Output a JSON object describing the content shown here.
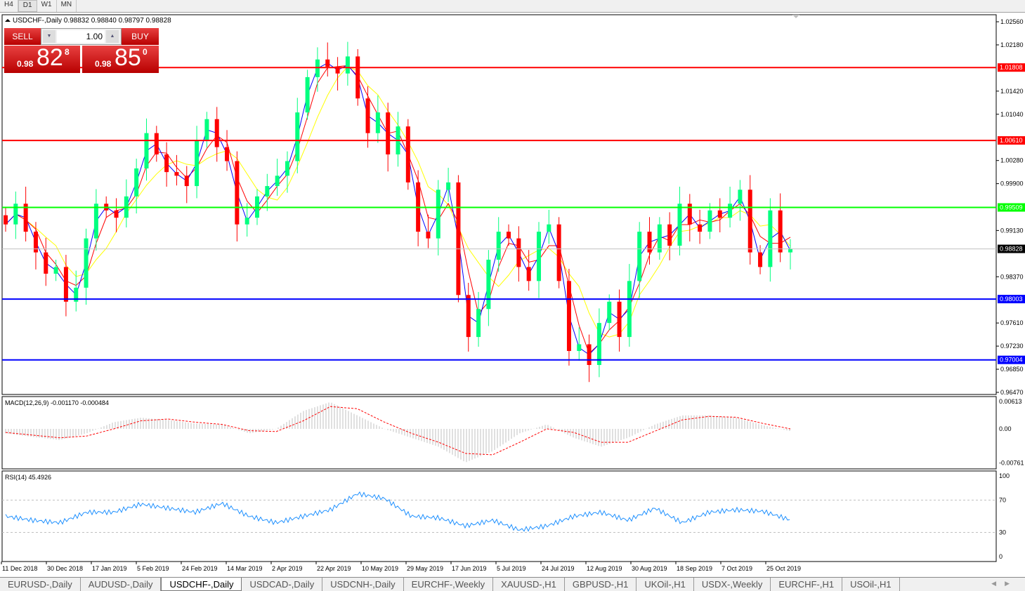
{
  "toolbar": {
    "timeframes": [
      "H4",
      "D1",
      "W1",
      "MN"
    ],
    "active": "D1"
  },
  "chart": {
    "header": "USDCHF-,Daily  0.98832 0.98840 0.98797 0.98828",
    "trade_panel": {
      "sell_label": "SELL",
      "buy_label": "BUY",
      "lot": "1.00",
      "sell_prefix": "0.98",
      "sell_big": "82",
      "sell_sup": "8",
      "buy_prefix": "0.98",
      "buy_big": "85",
      "buy_sup": "0"
    },
    "price_ticks": [
      "1.02560",
      "1.02180",
      "1.01420",
      "1.01040",
      "1.00280",
      "0.99900",
      "0.99130",
      "0.98370",
      "0.97610",
      "0.97230",
      "0.96850",
      "0.96470"
    ],
    "levels": [
      {
        "price": "1.01808",
        "color": "#ff0000"
      },
      {
        "price": "1.00610",
        "color": "#ff0000"
      },
      {
        "price": "0.99509",
        "color": "#00ff00"
      },
      {
        "price": "0.98003",
        "color": "#0000ff"
      },
      {
        "price": "0.97004",
        "color": "#0000ff"
      }
    ],
    "current_price": "0.98828",
    "dates": [
      "11 Dec 2018",
      "30 Dec 2018",
      "17 Jan 2019",
      "5 Feb 2019",
      "24 Feb 2019",
      "14 Mar 2019",
      "2 Apr 2019",
      "22 Apr 2019",
      "10 May 2019",
      "29 May 2019",
      "17 Jun 2019",
      "5 Jul 2019",
      "24 Jul 2019",
      "12 Aug 2019",
      "30 Aug 2019",
      "18 Sep 2019",
      "7 Oct 2019",
      "25 Oct 2019"
    ],
    "colors": {
      "bull": "#00ff7f",
      "bear": "#ff0000",
      "ma_fast": "#0000ff",
      "ma_mid": "#ff0000",
      "ma_slow": "#ffff00"
    }
  },
  "macd": {
    "label": "MACD(12,26,9) -0.001170 -0.000484",
    "ticks": [
      "0.00613",
      "0.00",
      "-0.00761"
    ]
  },
  "rsi": {
    "label": "RSI(14) 45.4926",
    "ticks": [
      "100",
      "70",
      "30",
      "0"
    ]
  },
  "chart_data": {
    "type": "candlestick",
    "symbol": "USDCHF",
    "timeframe": "Daily",
    "ylim": [
      0.9647,
      1.0256
    ],
    "closes": [
      0.9923,
      0.9957,
      0.9911,
      0.9877,
      0.9842,
      0.9853,
      0.9796,
      0.9819,
      0.99,
      0.9957,
      0.9946,
      0.9934,
      0.9969,
      1.0015,
      1.0073,
      1.0038,
      1.0009,
      1.0003,
      0.9986,
      1.0061,
      1.0096,
      1.005,
      1.0027,
      0.9923,
      0.9934,
      0.9969,
      0.9986,
      1.0003,
      1.0027,
      1.0107,
      1.0165,
      1.0194,
      1.0182,
      1.0171,
      1.0199,
      1.013,
      1.0073,
      1.0107,
      1.0038,
      1.0084,
      0.9992,
      0.9911,
      0.99,
      0.998,
      0.9992,
      0.9807,
      0.9738,
      0.9784,
      0.9865,
      0.9911,
      0.99,
      0.9853,
      0.983,
      0.9911,
      0.9923,
      0.983,
      0.9715,
      0.9726,
      0.9692,
      0.9761,
      0.9796,
      0.9738,
      0.983,
      0.9911,
      0.9877,
      0.9923,
      0.9888,
      0.9957,
      0.9923,
      0.9911,
      0.9946,
      0.9934,
      0.9957,
      0.998,
      0.9877,
      0.9853,
      0.9946,
      0.9877,
      0.98828
    ],
    "macd_hist": [
      -0.001,
      -0.0018,
      -0.0025,
      -0.001,
      0.0015,
      0.0025,
      0.002,
      0.0012,
      0.001,
      -0.001,
      0.0,
      0.004,
      0.006,
      0.003,
      0.0,
      -0.002,
      -0.004,
      -0.0075,
      -0.005,
      -0.001,
      0.001,
      -0.002,
      -0.004,
      -0.002,
      0.001,
      0.003,
      0.003,
      0.0025,
      0.0008,
      -0.0005
    ],
    "macd_signal": [
      -0.0008,
      -0.0014,
      -0.002,
      -0.0016,
      0.0,
      0.0018,
      0.0022,
      0.0015,
      0.001,
      -0.0004,
      -0.0006,
      0.0018,
      0.005,
      0.0045,
      0.0015,
      -0.001,
      -0.003,
      -0.0055,
      -0.0058,
      -0.003,
      0.0,
      -0.0008,
      -0.003,
      -0.003,
      -0.0005,
      0.002,
      0.0028,
      0.0026,
      0.0012,
      0.0
    ],
    "rsi": [
      50,
      45,
      42,
      55,
      55,
      65,
      60,
      55,
      66,
      50,
      42,
      50,
      58,
      78,
      72,
      50,
      48,
      38,
      45,
      33,
      38,
      50,
      55,
      45,
      60,
      42,
      55,
      58,
      56,
      45.49
    ]
  }
}
